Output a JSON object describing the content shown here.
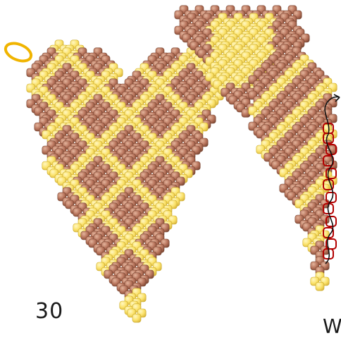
{
  "diagram": {
    "step_number": "30",
    "next_step_letter": "W",
    "colors": {
      "bead_brown": "#b7735b",
      "bead_brown_dark": "#7a4632",
      "bead_yellow": "#fbe26a",
      "bead_yellow_dark": "#c9a92a",
      "thread_highlight": "#b30000",
      "ring": "#f0b400",
      "arrow": "#111111"
    },
    "icons": [
      "ring-icon",
      "thread-arrow-icon"
    ]
  }
}
